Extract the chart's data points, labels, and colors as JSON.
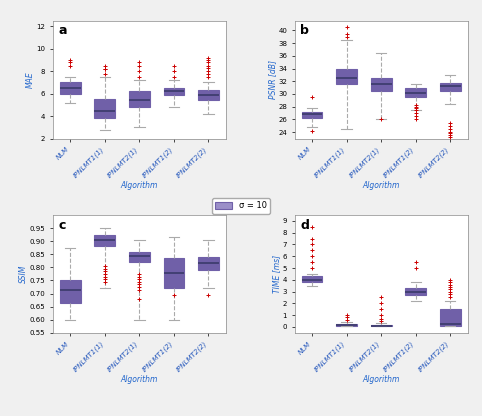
{
  "title_a": "a",
  "title_b": "b",
  "title_c": "c",
  "title_d": "d",
  "xlabel": "Algorithm",
  "ylabel_a": "MAE",
  "ylabel_b": "PSNR [dB]",
  "ylabel_c": "SSIM",
  "ylabel_d": "TIME [ms]",
  "categories": [
    "NLM",
    "IPNLMT1(1)",
    "IPNLMT2(1)",
    "IPNLMT1(2)",
    "IPNLMT2(2)"
  ],
  "box_color": "#9b8fc8",
  "box_edge_color": "#7060a8",
  "median_color": "#3a3a6a",
  "flier_color": "#cc0000",
  "whisker_color": "#aaaaaa",
  "cap_color": "#aaaaaa",
  "legend_label": "σ = 10",
  "fig_facecolor": "#f0f0f0",
  "mae": {
    "whislo": [
      5.2,
      2.8,
      3.0,
      4.8,
      4.2
    ],
    "q1": [
      6.0,
      3.8,
      4.8,
      5.9,
      5.4
    ],
    "med": [
      6.5,
      4.5,
      5.4,
      6.2,
      5.9
    ],
    "q3": [
      7.0,
      5.5,
      6.2,
      6.5,
      6.3
    ],
    "whishi": [
      7.5,
      7.5,
      7.2,
      7.2,
      7.0
    ],
    "fliers_x": [
      1,
      1,
      1,
      2,
      2,
      2,
      2,
      3,
      3,
      3,
      3,
      4,
      4,
      4,
      5,
      5,
      5,
      5,
      5,
      5,
      5,
      5
    ],
    "fliers_y": [
      8.5,
      8.8,
      9.0,
      7.8,
      8.2,
      8.5,
      8.2,
      7.5,
      8.0,
      8.5,
      8.8,
      7.5,
      8.0,
      8.5,
      7.5,
      7.8,
      8.0,
      8.3,
      8.5,
      8.8,
      9.0,
      9.2
    ],
    "ylim": [
      2,
      12.5
    ],
    "yticks": [
      2,
      4,
      6,
      8,
      10,
      12
    ]
  },
  "psnr": {
    "whislo": [
      24.8,
      24.5,
      26.0,
      27.5,
      28.5
    ],
    "q1": [
      26.2,
      31.5,
      30.5,
      29.5,
      30.5
    ],
    "med": [
      26.8,
      32.5,
      31.5,
      30.2,
      31.2
    ],
    "q3": [
      27.2,
      34.0,
      32.5,
      31.0,
      31.8
    ],
    "whishi": [
      27.8,
      38.5,
      36.5,
      31.5,
      33.0
    ],
    "fliers_x": [
      1,
      1,
      2,
      2,
      2,
      3,
      4,
      4,
      4,
      4,
      4,
      4,
      4,
      5,
      5,
      5,
      5,
      5,
      5,
      5
    ],
    "fliers_y": [
      29.5,
      24.2,
      39.0,
      39.5,
      40.5,
      26.0,
      27.8,
      28.0,
      28.2,
      27.5,
      27.0,
      26.5,
      26.0,
      25.5,
      25.0,
      24.5,
      24.0,
      23.8,
      23.5,
      23.2
    ],
    "ylim": [
      23.0,
      41.5
    ],
    "yticks": [
      24,
      26,
      28,
      30,
      32,
      34,
      36,
      38,
      40
    ]
  },
  "ssim": {
    "whislo": [
      0.6,
      0.72,
      0.6,
      0.6,
      0.72
    ],
    "q1": [
      0.665,
      0.88,
      0.82,
      0.72,
      0.79
    ],
    "med": [
      0.715,
      0.905,
      0.845,
      0.78,
      0.815
    ],
    "q3": [
      0.75,
      0.925,
      0.86,
      0.835,
      0.84
    ],
    "whishi": [
      0.875,
      0.95,
      0.905,
      0.915,
      0.905
    ],
    "fliers_x": [
      2,
      2,
      2,
      2,
      2,
      2,
      2,
      3,
      3,
      3,
      3,
      3,
      3,
      3,
      3,
      4,
      5
    ],
    "fliers_y": [
      0.805,
      0.795,
      0.785,
      0.775,
      0.765,
      0.755,
      0.745,
      0.775,
      0.765,
      0.755,
      0.745,
      0.735,
      0.725,
      0.715,
      0.68,
      0.695,
      0.695
    ],
    "ylim": [
      0.55,
      1.0
    ],
    "yticks": [
      0.55,
      0.6,
      0.65,
      0.7,
      0.75,
      0.8,
      0.85,
      0.9,
      0.95
    ]
  },
  "time": {
    "whislo": [
      3.5,
      0.05,
      0.05,
      2.2,
      0.05
    ],
    "q1": [
      3.8,
      0.12,
      0.08,
      2.7,
      0.1
    ],
    "med": [
      4.0,
      0.18,
      0.12,
      3.0,
      0.25
    ],
    "q3": [
      4.3,
      0.28,
      0.2,
      3.3,
      1.5
    ],
    "whishi": [
      4.5,
      0.45,
      0.35,
      3.8,
      2.2
    ],
    "fliers_x": [
      1,
      1,
      1,
      1,
      1,
      1,
      1,
      2,
      2,
      2,
      3,
      3,
      3,
      3,
      3,
      3,
      4,
      4,
      5,
      5,
      5,
      5,
      5,
      5,
      5,
      5
    ],
    "fliers_y": [
      5.0,
      5.5,
      6.0,
      6.5,
      7.0,
      7.5,
      8.5,
      0.6,
      0.8,
      1.0,
      0.5,
      0.7,
      1.0,
      1.5,
      2.0,
      2.5,
      5.0,
      5.5,
      2.5,
      2.8,
      3.0,
      3.2,
      3.4,
      3.6,
      3.8,
      4.0
    ],
    "ylim": [
      -0.5,
      9.5
    ],
    "yticks": [
      0,
      1,
      2,
      3,
      4,
      5,
      6,
      7,
      8,
      9
    ]
  }
}
